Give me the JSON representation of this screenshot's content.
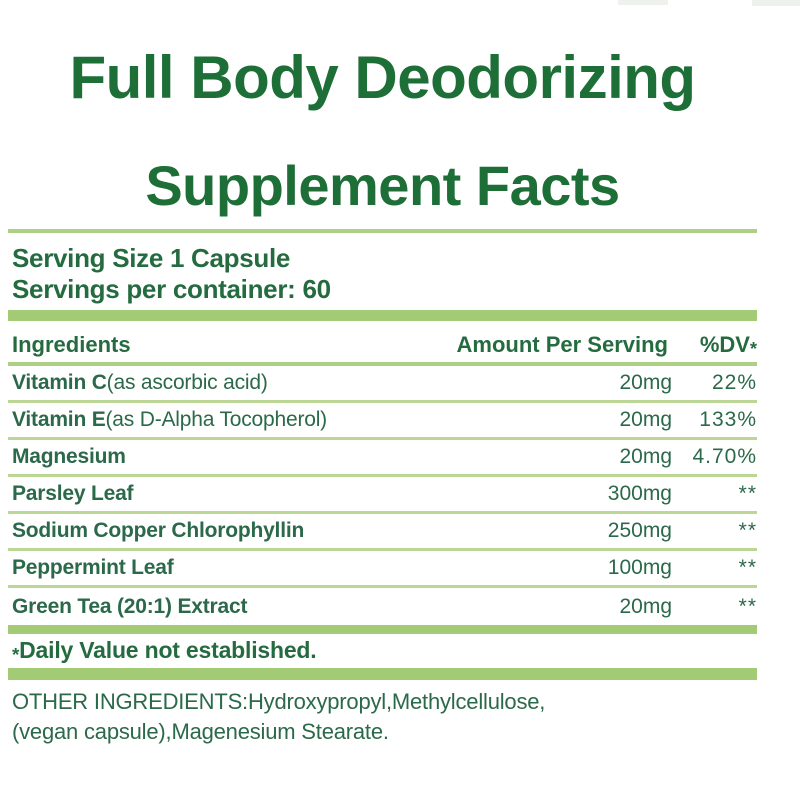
{
  "label": {
    "title_line1": "Full Body Deodorizing",
    "title_line2": "Supplement Facts",
    "serving_size": "Serving Size 1 Capsule",
    "servings_per_container": "Servings per container: 60",
    "table": {
      "headers": {
        "ingredients": "Ingredients",
        "amount": "Amount Per Serving",
        "dv": "%DV",
        "dv_star": "*"
      },
      "rows": [
        {
          "name": "Vitamin C",
          "detail": "(as ascorbic acid)",
          "amount": "20mg",
          "dv": "22%"
        },
        {
          "name": "Vitamin E",
          "detail": "(as D-Alpha Tocopherol)",
          "amount": "20mg",
          "dv": "133%"
        },
        {
          "name": "Magnesium",
          "detail": "",
          "amount": "20mg",
          "dv": "4.70%"
        },
        {
          "name": "Parsley Leaf",
          "detail": "",
          "amount": "300mg",
          "dv": "**"
        },
        {
          "name": "Sodium Copper Chlorophyllin",
          "detail": "",
          "amount": "250mg",
          "dv": "**"
        },
        {
          "name": "Peppermint Leaf",
          "detail": "",
          "amount": "100mg",
          "dv": "**"
        },
        {
          "name": "Green Tea (20:1) Extract",
          "detail": "",
          "amount": "20mg",
          "dv": "**"
        }
      ]
    },
    "footnote_star": "*",
    "footnote_text": "Daily Value not established.",
    "other_ingredients_line1": "OTHER INGREDIENTS:Hydroxypropyl,Methylcellulose,",
    "other_ingredients_line2": "(vegan capsule),Magenesium Stearate."
  },
  "colors": {
    "title_green": "#1d6f37",
    "text_green": "#2b694a",
    "bar_green": "#a3ca75",
    "separator_green": "#bcd795"
  }
}
